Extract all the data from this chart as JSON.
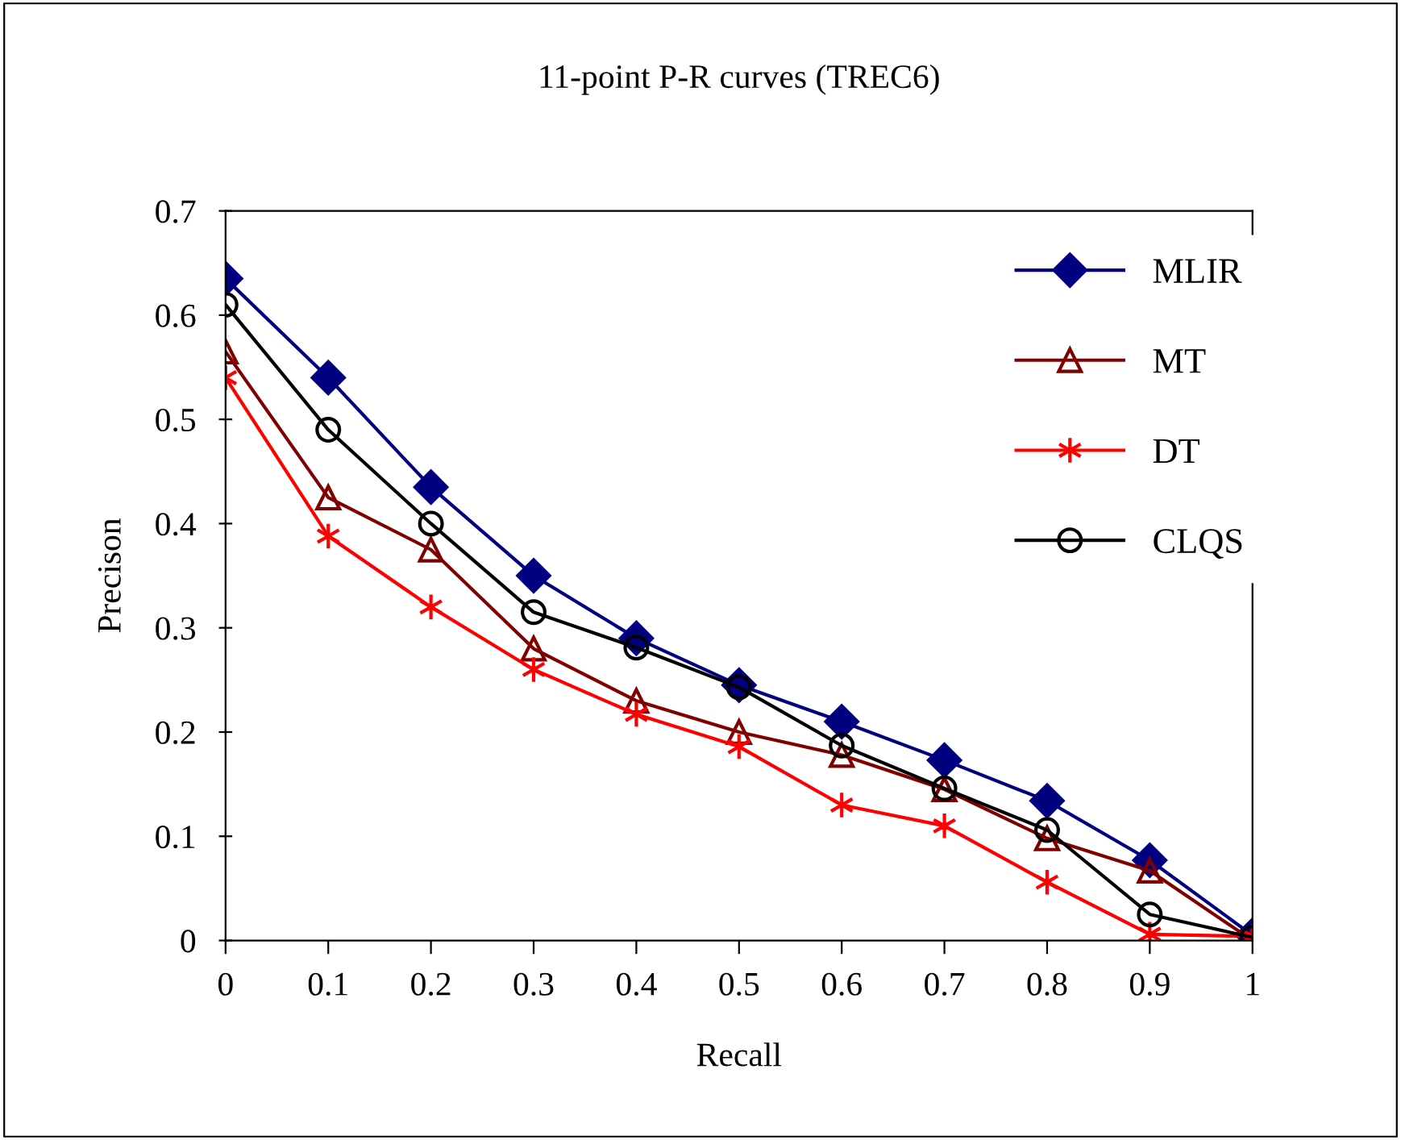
{
  "chart_data": {
    "type": "line",
    "title": "11-point P-R curves (TREC6)",
    "xlabel": "Recall",
    "ylabel": "Precison",
    "x": [
      0,
      0.1,
      0.2,
      0.3,
      0.4,
      0.5,
      0.6,
      0.7,
      0.8,
      0.9,
      1
    ],
    "series": [
      {
        "name": "MLIR",
        "color": "#000080",
        "marker": "diamond",
        "values": [
          0.635,
          0.54,
          0.435,
          0.35,
          0.29,
          0.245,
          0.21,
          0.173,
          0.134,
          0.077,
          0.005
        ]
      },
      {
        "name": "MT",
        "color": "#800000",
        "marker": "triangle",
        "values": [
          0.565,
          0.425,
          0.375,
          0.28,
          0.23,
          0.2,
          0.178,
          0.145,
          0.098,
          0.067,
          0.0
        ]
      },
      {
        "name": "DT",
        "color": "#ff0000",
        "marker": "cross",
        "values": [
          0.54,
          0.388,
          0.32,
          0.26,
          0.217,
          0.186,
          0.13,
          0.11,
          0.056,
          0.006,
          0.004
        ]
      },
      {
        "name": "CLQS",
        "color": "#000000",
        "marker": "circle",
        "values": [
          0.61,
          0.49,
          0.4,
          0.315,
          0.281,
          0.243,
          0.187,
          0.146,
          0.106,
          0.025,
          0.003
        ]
      }
    ],
    "xlim": [
      0,
      1
    ],
    "xticks": [
      0,
      0.1,
      0.2,
      0.3,
      0.4,
      0.5,
      0.6,
      0.7,
      0.8,
      0.9,
      1
    ],
    "ylim": [
      0,
      0.7
    ],
    "yticks": [
      0,
      0.1,
      0.2,
      0.3,
      0.4,
      0.5,
      0.6,
      0.7
    ],
    "grid": false,
    "legend": "top right",
    "line_style": "solid"
  }
}
